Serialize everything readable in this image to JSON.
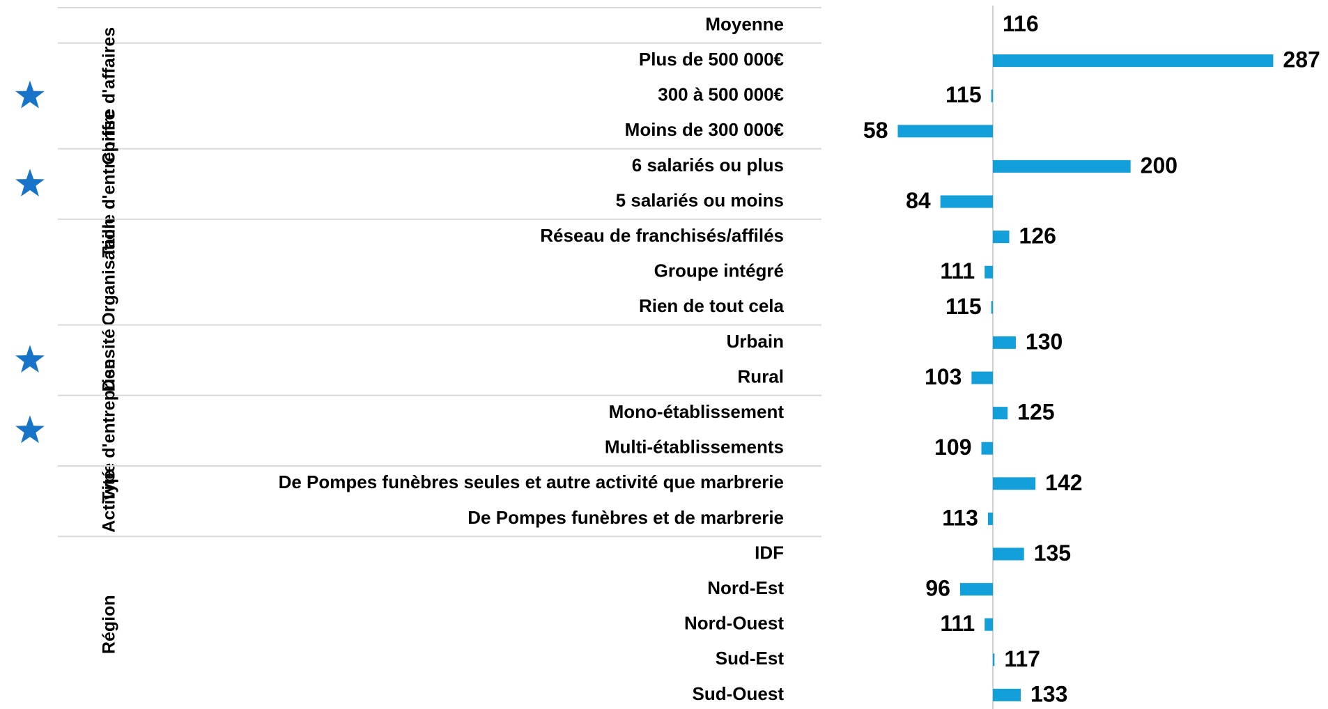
{
  "chart_data": {
    "type": "bar",
    "orientation": "horizontal",
    "color": "#129fda",
    "star_color": "#1874c8",
    "xlim": [
      0,
      300
    ],
    "average": {
      "label": "Moyenne",
      "value": 116
    },
    "groups": [
      {
        "name": "Chiffre d'affaires",
        "starred": true,
        "categories": [
          "Plus de 500 000€",
          "300 à 500 000€",
          "Moins de 300 000€"
        ],
        "values": [
          287,
          115,
          58
        ]
      },
      {
        "name": "Taille d'entreprise",
        "starred": true,
        "categories": [
          "6 salariés ou plus",
          "5 salariés ou moins"
        ],
        "values": [
          200,
          84
        ]
      },
      {
        "name": "Organisation",
        "starred": false,
        "categories": [
          "Réseau de franchisés/affilés",
          "Groupe intégré",
          "Rien de tout cela"
        ],
        "values": [
          126,
          111,
          115
        ]
      },
      {
        "name": "Densité",
        "starred": true,
        "categories": [
          "Urbain",
          "Rural"
        ],
        "values": [
          130,
          103
        ]
      },
      {
        "name": "Type d'entreprise",
        "starred": true,
        "categories": [
          "Mono-établissement",
          "Multi-établissements"
        ],
        "values": [
          125,
          109
        ]
      },
      {
        "name": "Activité",
        "starred": false,
        "categories": [
          "De Pompes funèbres seules et  autre activité que marbrerie",
          "De Pompes funèbres et de marbrerie"
        ],
        "values": [
          142,
          113
        ]
      },
      {
        "name": "Région",
        "starred": false,
        "categories": [
          "IDF",
          "Nord-Est",
          "Nord-Ouest",
          "Sud-Est",
          "Sud-Ouest"
        ],
        "values": [
          135,
          96,
          111,
          117,
          133
        ]
      }
    ]
  }
}
